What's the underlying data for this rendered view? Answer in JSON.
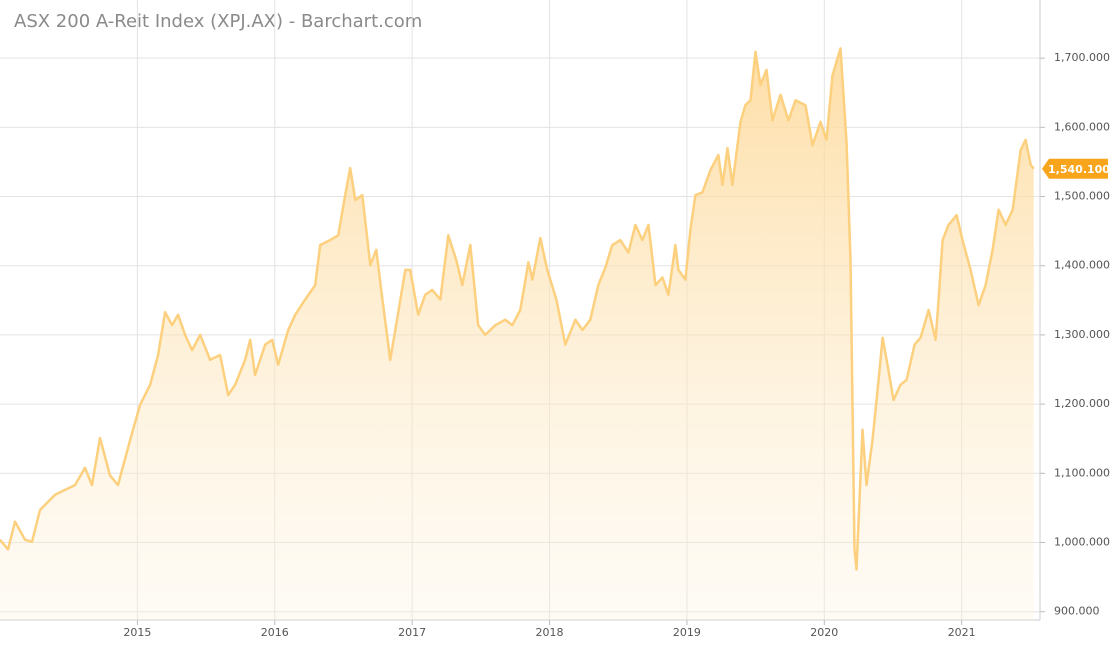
{
  "chart_data": {
    "type": "area",
    "title": "ASX 200 A-Reit Index (XPJ.AX) - Barchart.com",
    "color": "#fcd07e",
    "x": [
      2014.0,
      2014.058,
      2014.109,
      2014.182,
      2014.233,
      2014.291,
      2014.401,
      2014.473,
      2014.546,
      2014.619,
      2014.67,
      2014.728,
      2014.801,
      2014.859,
      2014.947,
      2015.02,
      2015.093,
      2015.151,
      2015.202,
      2015.253,
      2015.296,
      2015.347,
      2015.398,
      2015.457,
      2015.529,
      2015.602,
      2015.661,
      2015.712,
      2015.784,
      2015.821,
      2015.857,
      2015.93,
      2015.981,
      2016.025,
      2016.098,
      2016.149,
      2016.221,
      2016.294,
      2016.331,
      2016.403,
      2016.462,
      2016.513,
      2016.549,
      2016.586,
      2016.637,
      2016.695,
      2016.739,
      2016.775,
      2016.84,
      2016.877,
      2016.95,
      2016.986,
      2017.044,
      2017.095,
      2017.146,
      2017.205,
      2017.263,
      2017.321,
      2017.365,
      2017.423,
      2017.481,
      2017.532,
      2017.605,
      2017.678,
      2017.729,
      2017.787,
      2017.846,
      2017.875,
      2017.933,
      2017.984,
      2018.05,
      2018.115,
      2018.188,
      2018.239,
      2018.297,
      2018.355,
      2018.406,
      2018.457,
      2018.516,
      2018.574,
      2018.625,
      2018.676,
      2018.72,
      2018.771,
      2018.822,
      2018.865,
      2018.916,
      2018.938,
      2018.989,
      2019.025,
      2019.062,
      2019.113,
      2019.171,
      2019.229,
      2019.259,
      2019.295,
      2019.331,
      2019.39,
      2019.426,
      2019.463,
      2019.499,
      2019.535,
      2019.579,
      2019.623,
      2019.681,
      2019.739,
      2019.79,
      2019.863,
      2019.914,
      2019.972,
      2020.016,
      2020.06,
      2020.118,
      2020.162,
      2020.191,
      2020.22,
      2020.234,
      2020.278,
      2020.307,
      2020.351,
      2020.395,
      2020.424,
      2020.46,
      2020.504,
      2020.555,
      2020.599,
      2020.657,
      2020.701,
      2020.759,
      2020.81,
      2020.832,
      2020.861,
      2020.904,
      2020.963,
      2021.006,
      2021.065,
      2021.123,
      2021.174,
      2021.225,
      2021.269,
      2021.32,
      2021.371,
      2021.429,
      2021.465,
      2021.502,
      2021.524
    ],
    "values": [
      1004,
      990,
      1030,
      1004,
      1001,
      1047,
      1069,
      1076,
      1083,
      1108,
      1083,
      1151,
      1097,
      1083,
      1148,
      1199,
      1228,
      1271,
      1333,
      1314,
      1329,
      1300,
      1278,
      1300,
      1264,
      1271,
      1213,
      1228,
      1264,
      1293,
      1242,
      1286,
      1293,
      1257,
      1307,
      1329,
      1351,
      1372,
      1430,
      1437,
      1444,
      1502,
      1541,
      1495,
      1502,
      1401,
      1423,
      1365,
      1264,
      1307,
      1394,
      1394,
      1329,
      1358,
      1365,
      1351,
      1444,
      1408,
      1372,
      1430,
      1314,
      1300,
      1314,
      1322,
      1314,
      1336,
      1405,
      1380,
      1440,
      1394,
      1351,
      1286,
      1322,
      1307,
      1322,
      1372,
      1397,
      1430,
      1437,
      1419,
      1459,
      1437,
      1459,
      1372,
      1383,
      1358,
      1430,
      1394,
      1380,
      1452,
      1502,
      1506,
      1538,
      1560,
      1517,
      1570,
      1517,
      1608,
      1632,
      1639,
      1709,
      1661,
      1683,
      1610,
      1647,
      1610,
      1639,
      1632,
      1574,
      1608,
      1582,
      1675,
      1714,
      1577,
      1408,
      990,
      961,
      1163,
      1083,
      1148,
      1235,
      1296,
      1257,
      1206,
      1228,
      1235,
      1286,
      1296,
      1336,
      1293,
      1351,
      1437,
      1459,
      1473,
      1437,
      1394,
      1343,
      1372,
      1423,
      1481,
      1459,
      1481,
      1567,
      1582,
      1546,
      1540.1
    ],
    "current_price": {
      "value": 1540.1,
      "label": "1,540.100"
    },
    "xlim": [
      2014,
      2021.57
    ],
    "xticks": [
      2015,
      2016,
      2017,
      2018,
      2019,
      2020,
      2021
    ],
    "ylim": [
      888,
      1784
    ],
    "yticks": [
      {
        "value": 900,
        "label": "900.000"
      },
      {
        "value": 1000,
        "label": "1,000.000"
      },
      {
        "value": 1100,
        "label": "1,100.000"
      },
      {
        "value": 1200,
        "label": "1,200.000"
      },
      {
        "value": 1300,
        "label": "1,300.000"
      },
      {
        "value": 1400,
        "label": "1,400.000"
      },
      {
        "value": 1500,
        "label": "1,500.000"
      },
      {
        "value": 1600,
        "label": "1,600.000"
      },
      {
        "value": 1700,
        "label": "1,700.000"
      }
    ],
    "grid": true
  }
}
